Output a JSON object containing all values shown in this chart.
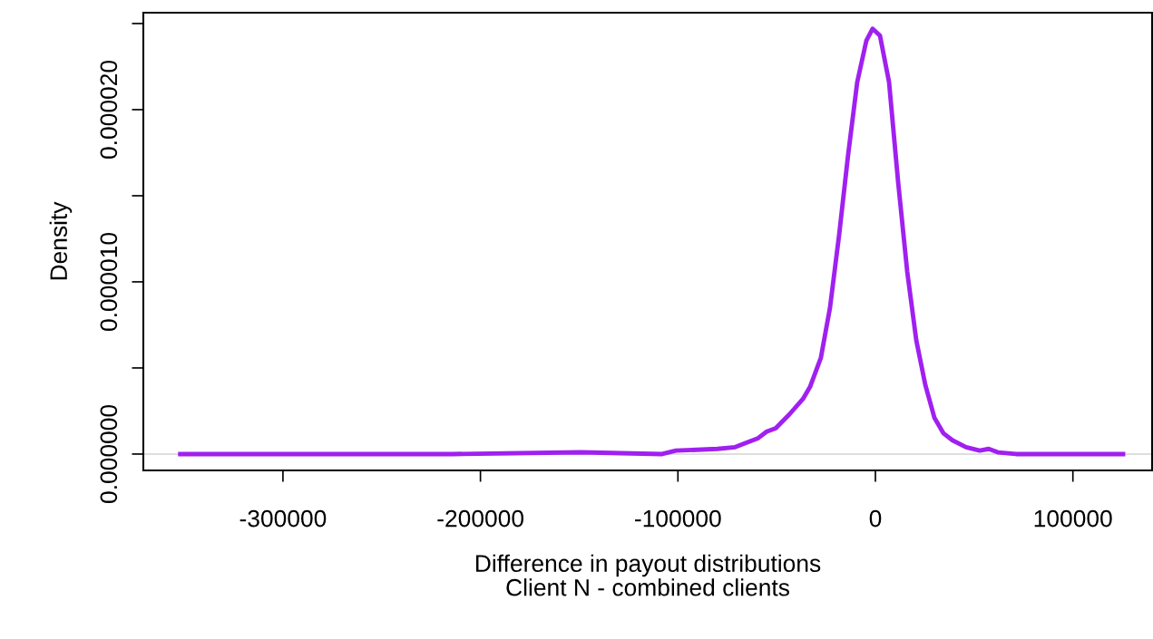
{
  "chart_data": {
    "type": "line",
    "xlabel": "Difference in payout distributions\nClient N - combined clients",
    "ylabel": "Density",
    "x": [
      -352000,
      -214000,
      -149000,
      -108000,
      -101000,
      -80000,
      -71000,
      -66600,
      -59700,
      -55100,
      -50500,
      -43600,
      -36700,
      -33100,
      -27600,
      -23000,
      -18400,
      -13800,
      -9200,
      -4600,
      -1400,
      2300,
      6900,
      11500,
      16100,
      20700,
      25300,
      29900,
      34500,
      39000,
      45900,
      52800,
      57400,
      62000,
      71200,
      125400
    ],
    "series": [
      {
        "color": "#a020f0",
        "values": [
          0,
          0,
          1e-07,
          0,
          2e-07,
          3e-07,
          4e-07,
          6e-07,
          9e-07,
          1.3e-06,
          1.5e-06,
          2.3e-06,
          3.2e-06,
          3.9e-06,
          5.6e-06,
          8.5e-06,
          1.27e-05,
          1.74e-05,
          2.16e-05,
          2.4e-05,
          2.47e-05,
          2.43e-05,
          2.16e-05,
          1.58e-05,
          1.06e-05,
          6.6e-06,
          4e-06,
          2.1e-06,
          1.2e-06,
          8e-07,
          4e-07,
          2e-07,
          3e-07,
          1e-07,
          0,
          0
        ]
      }
    ],
    "xlim": [
      -370700,
      140100
    ],
    "ylim": [
      -9.5e-07,
      2.563e-05
    ],
    "xticks": [
      -300000,
      -200000,
      -100000,
      0,
      100000
    ],
    "yticks": [
      {
        "value": 0,
        "label": "0.000000"
      },
      {
        "value": 5e-06,
        "label": null
      },
      {
        "value": 1e-05,
        "label": "0.000010"
      },
      {
        "value": 1.5e-05,
        "label": null
      },
      {
        "value": 2e-05,
        "label": "0.000020"
      },
      {
        "value": 2.5e-05,
        "label": null
      }
    ],
    "ref_lines": [
      {
        "axis": "y",
        "value": 0,
        "color": "#d3d3d3"
      }
    ],
    "marker": "none",
    "line_style": "solid"
  }
}
